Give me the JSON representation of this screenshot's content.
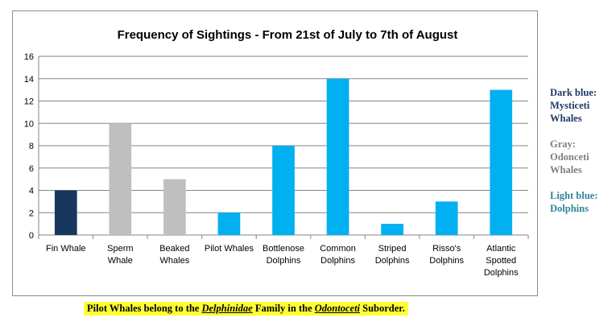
{
  "chart_data": {
    "type": "bar",
    "title": "Frequency of Sightings - From 21st of July to 7th of August",
    "categories": [
      "Fin Whale",
      "Sperm Whale",
      "Beaked Whales",
      "Pilot Whales",
      "Bottlenose Dolphins",
      "Common Dolphins",
      "Striped Dolphins",
      "Risso's Dolphins",
      "Atlantic Spotted Dolphins"
    ],
    "category_lines": [
      [
        "Fin Whale"
      ],
      [
        "Sperm",
        "Whale"
      ],
      [
        "Beaked",
        "Whales"
      ],
      [
        "Pilot Whales"
      ],
      [
        "Bottlenose",
        "Dolphins"
      ],
      [
        "Common",
        "Dolphins"
      ],
      [
        "Striped",
        "Dolphins"
      ],
      [
        "Risso's",
        "Dolphins"
      ],
      [
        "Atlantic",
        "Spotted",
        "Dolphins"
      ]
    ],
    "values": [
      4,
      10,
      5,
      2,
      8,
      14,
      1,
      3,
      13
    ],
    "bar_colors": [
      "#17375e",
      "#bfbfbf",
      "#bfbfbf",
      "#00b0f0",
      "#00b0f0",
      "#00b0f0",
      "#00b0f0",
      "#00b0f0",
      "#00b0f0"
    ],
    "ylim": [
      0,
      16
    ],
    "yticks": [
      0,
      2,
      4,
      6,
      8,
      10,
      12,
      14,
      16
    ],
    "grid": true,
    "xlabel": "",
    "ylabel": ""
  },
  "legend": [
    {
      "lines": [
        "Dark blue:",
        "Mysticeti",
        "Whales"
      ],
      "color": "#1f3864"
    },
    {
      "lines": [
        "Gray:",
        "Odonceti",
        "Whales"
      ],
      "color": "#7f7f7f"
    },
    {
      "lines": [
        "Light blue:",
        "Dolphins"
      ],
      "color": "#31849b"
    }
  ],
  "note": {
    "prefix": "Pilot Whales belong to the ",
    "family": "Delphinidae",
    "middle": " Family in the ",
    "suborder": "Odontoceti",
    "suffix": " Suborder."
  }
}
